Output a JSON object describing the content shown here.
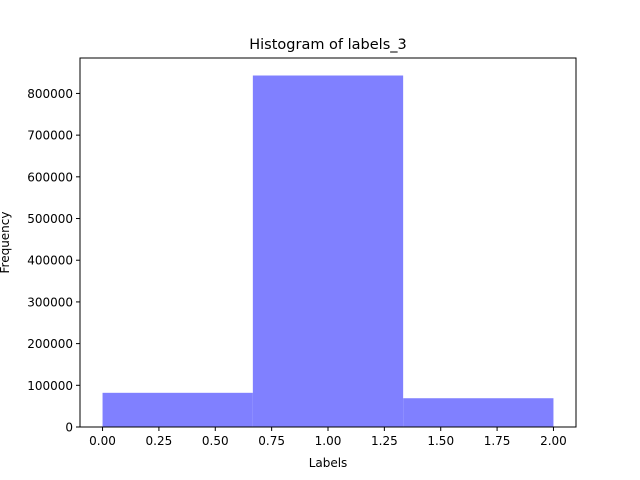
{
  "chart_data": {
    "type": "bar",
    "title": "Histogram of labels_3",
    "xlabel": "Labels",
    "ylabel": "Frequency",
    "bins": [
      {
        "start": 0.0,
        "end": 0.6667,
        "value": 82000
      },
      {
        "start": 0.6667,
        "end": 1.3333,
        "value": 843000
      },
      {
        "start": 1.3333,
        "end": 2.0,
        "value": 69000
      }
    ],
    "xlim": [
      -0.1,
      2.1
    ],
    "ylim": [
      0,
      885000
    ],
    "x_ticks": [
      0.0,
      0.25,
      0.5,
      0.75,
      1.0,
      1.25,
      1.5,
      1.75,
      2.0
    ],
    "x_tick_labels": [
      "0.00",
      "0.25",
      "0.50",
      "0.75",
      "1.00",
      "1.25",
      "1.50",
      "1.75",
      "2.00"
    ],
    "y_ticks": [
      0,
      100000,
      200000,
      300000,
      400000,
      500000,
      600000,
      700000,
      800000
    ],
    "y_tick_labels": [
      "0",
      "100000",
      "200000",
      "300000",
      "400000",
      "500000",
      "600000",
      "700000",
      "800000"
    ],
    "bar_color": "#8080ff",
    "grid": false
  }
}
